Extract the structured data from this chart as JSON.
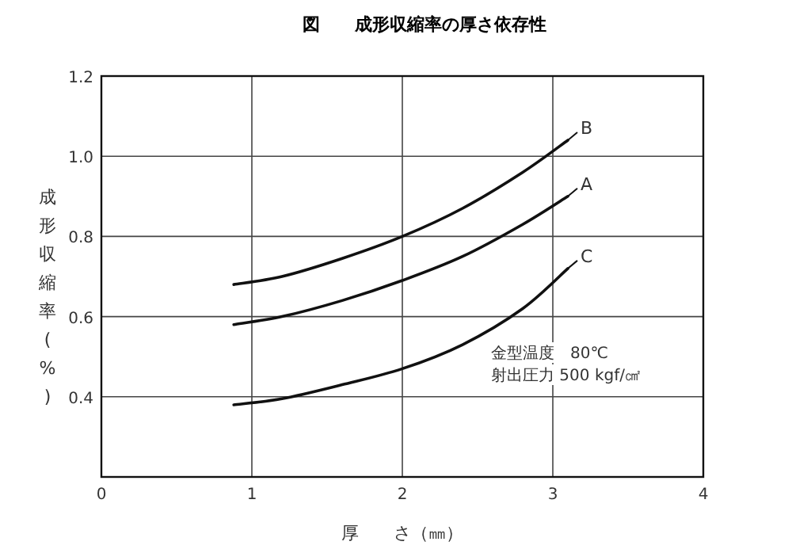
{
  "chart_data": {
    "type": "line",
    "title": "図　　成形収縮率の厚さ依存性",
    "ylabel": "成形収縮率(%)",
    "xlabel": "厚　　さ（㎜）",
    "xlim": [
      0,
      4
    ],
    "xticks": [
      0,
      1,
      2,
      3,
      4
    ],
    "ylim": [
      0.2,
      1.2
    ],
    "yticks": [
      {
        "value": 0.4,
        "label": "0.4"
      },
      {
        "value": 0.6,
        "label": "0.6"
      },
      {
        "value": 0.8,
        "label": "0.8"
      },
      {
        "value": 1.0,
        "label": "1.0"
      },
      {
        "value": 1.2,
        "label": "1.2"
      }
    ],
    "grid": true,
    "legend": "right",
    "marker": "none",
    "line_style": "solid",
    "series": [
      {
        "name": "B",
        "color": "#111111",
        "x": [
          0.88,
          1.2,
          1.6,
          2.0,
          2.4,
          2.8,
          3.1
        ],
        "values": [
          0.68,
          0.7,
          0.745,
          0.8,
          0.87,
          0.96,
          1.04
        ]
      },
      {
        "name": "A",
        "color": "#111111",
        "x": [
          0.88,
          1.2,
          1.6,
          2.0,
          2.4,
          2.8,
          3.1
        ],
        "values": [
          0.58,
          0.6,
          0.64,
          0.69,
          0.75,
          0.83,
          0.9
        ]
      },
      {
        "name": "C",
        "color": "#111111",
        "x": [
          0.88,
          1.2,
          1.6,
          2.0,
          2.4,
          2.8,
          3.1
        ],
        "values": [
          0.38,
          0.395,
          0.43,
          0.47,
          0.53,
          0.62,
          0.72
        ]
      }
    ],
    "annotations": [
      "金型温度　80℃",
      "射出圧力 500 kgf/㎠"
    ]
  }
}
